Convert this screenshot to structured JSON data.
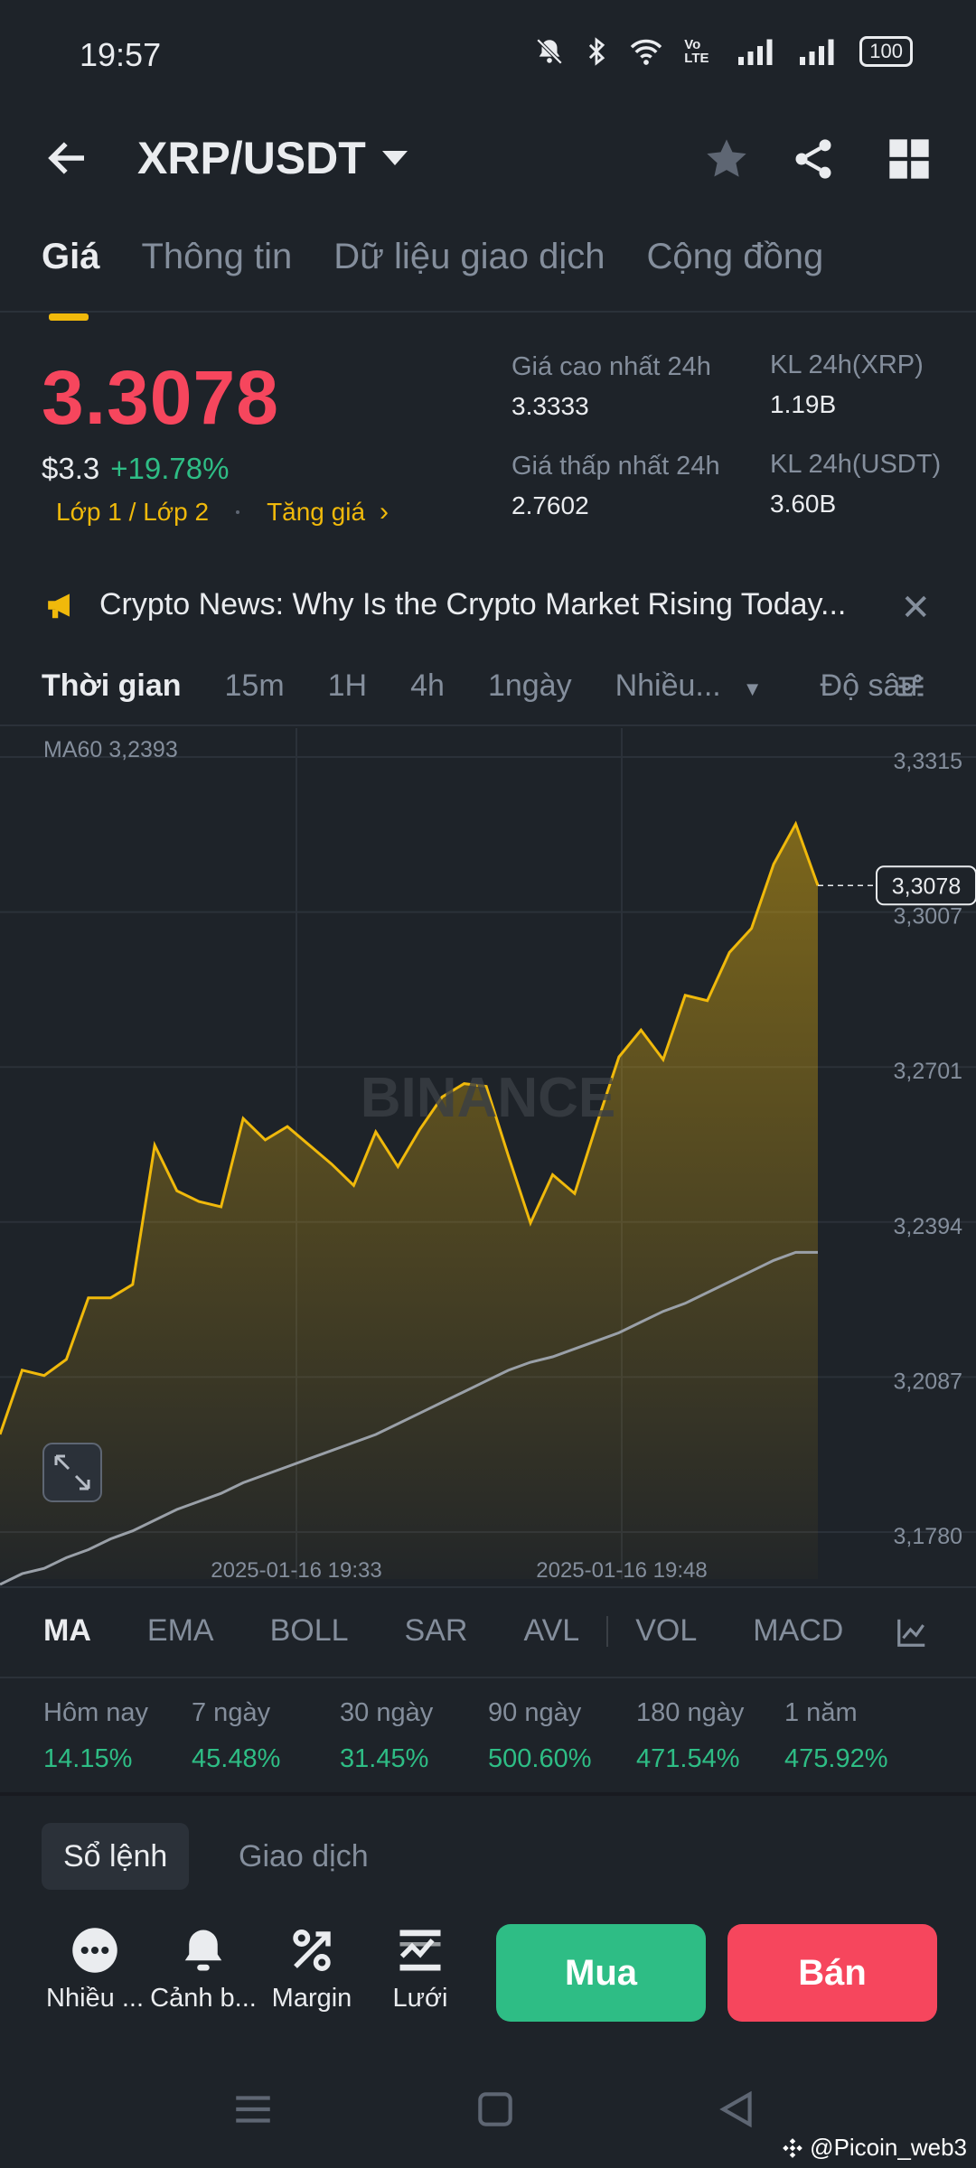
{
  "status": {
    "time": "19:57",
    "volte": "Vo LTE",
    "battery": "100"
  },
  "header": {
    "pair": "XRP/USDT"
  },
  "tabs": [
    {
      "label": "Giá",
      "active": true
    },
    {
      "label": "Thông tin"
    },
    {
      "label": "Dữ liệu giao dịch"
    },
    {
      "label": "Cộng đồng"
    }
  ],
  "price": {
    "last": "3.3078",
    "usd": "$3.3",
    "change": "+19.78%",
    "tag1": "Lớp 1 / Lớp 2",
    "tag2": "Tăng giá",
    "high_label": "Giá cao nhất 24h",
    "high": "3.3333",
    "low_label": "Giá thấp nhất 24h",
    "low": "2.7602",
    "vol_xrp_label": "KL 24h(XRP)",
    "vol_xrp": "1.19B",
    "vol_usdt_label": "KL 24h(USDT)",
    "vol_usdt": "3.60B"
  },
  "news": {
    "text": "Crypto News: Why Is the Crypto Market Rising Today..."
  },
  "timebar": {
    "items": [
      "Thời gian",
      "15m",
      "1H",
      "4h",
      "1ngày",
      "Nhiều..."
    ],
    "depth": "Độ sâu"
  },
  "chart": {
    "ma_label": "MA60 3,2393",
    "y_ticks": [
      "3,3315",
      "3,3007",
      "3,2701",
      "3,2394",
      "3,2087",
      "3,1780"
    ],
    "current_price_label": "3,3078",
    "watermark": "BINANCE",
    "x_ticks": [
      "2025-01-16 19:33",
      "2025-01-16 19:48"
    ]
  },
  "chart_data": {
    "type": "area",
    "title": "",
    "ylim": [
      3.178,
      3.3315
    ],
    "y_ticks": [
      3.3315,
      3.3007,
      3.2701,
      3.2394,
      3.2087,
      3.178
    ],
    "series": [
      {
        "name": "",
        "values": [
          3.205,
          3.217,
          3.216,
          3.219,
          3.2305,
          3.2305,
          3.233,
          3.259,
          3.2505,
          3.2485,
          3.2475,
          3.264,
          3.26,
          3.2625,
          3.259,
          3.2555,
          3.2515,
          3.2615,
          3.255,
          3.262,
          3.268,
          3.2705,
          3.27,
          3.257,
          3.2445,
          3.2535,
          3.25,
          3.263,
          3.2755,
          3.2805,
          3.275,
          3.287,
          3.286,
          3.295,
          3.2995,
          3.3115,
          3.319,
          3.3075
        ]
      },
      {
        "name": "MA60",
        "values": [
          3.178,
          3.18,
          3.181,
          3.183,
          3.1845,
          3.1865,
          3.188,
          3.19,
          3.192,
          3.1935,
          3.195,
          3.197,
          3.1985,
          3.2,
          3.2015,
          3.203,
          3.2045,
          3.206,
          3.208,
          3.21,
          3.212,
          3.214,
          3.216,
          3.218,
          3.2195,
          3.2205,
          3.222,
          3.2235,
          3.225,
          3.227,
          3.229,
          3.2305,
          3.2325,
          3.2345,
          3.2365,
          3.2385,
          3.24,
          3.24
        ]
      }
    ],
    "x_labels": [
      "2025-01-16 19:33",
      "2025-01-16 19:48"
    ]
  },
  "indicators": {
    "items": [
      "MA",
      "EMA",
      "BOLL",
      "SAR",
      "AVL",
      "VOL",
      "MACD"
    ]
  },
  "performance": [
    {
      "label": "Hôm nay",
      "value": "14.15%"
    },
    {
      "label": "7 ngày",
      "value": "45.48%"
    },
    {
      "label": "30 ngày",
      "value": "31.45%"
    },
    {
      "label": "90 ngày",
      "value": "500.60%"
    },
    {
      "label": "180 ngày",
      "value": "471.54%"
    },
    {
      "label": "1 năm",
      "value": "475.92%"
    }
  ],
  "bottom_tabs": {
    "order_book": "Sổ lệnh",
    "trades": "Giao dịch"
  },
  "tools": [
    {
      "label": "Nhiều ...",
      "icon": "more-icon"
    },
    {
      "label": "Cảnh b...",
      "icon": "bell-icon"
    },
    {
      "label": "Margin",
      "icon": "percent-icon"
    },
    {
      "label": "Lưới",
      "icon": "grid-bot-icon"
    }
  ],
  "actions": {
    "buy": "Mua",
    "sell": "Bán"
  },
  "watermark": "@Picoin_web3",
  "colors": {
    "up": "#2ebd85",
    "down": "#f6465d",
    "accent": "#f0b90b",
    "bg": "#1e2329"
  }
}
